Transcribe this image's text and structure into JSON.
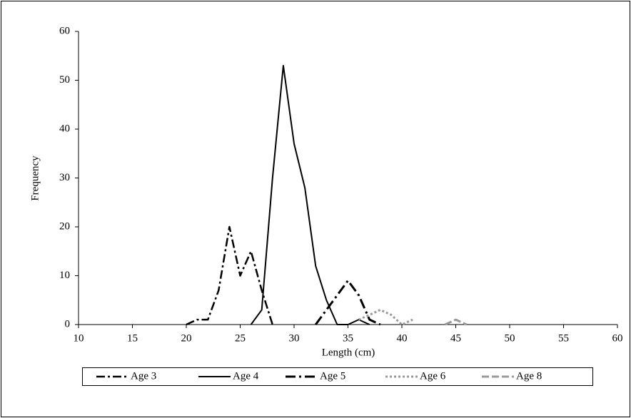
{
  "chart_data": {
    "type": "line",
    "x_label": "Length (cm)",
    "y_label": "Frequency",
    "xlim": [
      10,
      60
    ],
    "xticks": [
      10,
      15,
      20,
      25,
      30,
      35,
      40,
      45,
      50,
      55,
      60
    ],
    "ylim": [
      0,
      60
    ],
    "yticks": [
      0,
      10,
      20,
      30,
      40,
      50,
      60
    ],
    "series": [
      {
        "name": "Age 3",
        "color": "#000000",
        "x": [
          20,
          21,
          22,
          23,
          24,
          25,
          26,
          27,
          28
        ],
        "values": [
          0,
          1,
          1,
          7,
          20,
          10,
          15,
          7,
          0
        ]
      },
      {
        "name": "Age 4",
        "color": "#000000",
        "x": [
          26,
          27,
          28,
          29,
          30,
          31,
          32,
          33,
          34,
          35,
          36,
          37
        ],
        "values": [
          0,
          3,
          30,
          53,
          37,
          28,
          12,
          5,
          0,
          0,
          1,
          0
        ]
      },
      {
        "name": "Age 5",
        "color": "#000000",
        "x": [
          32,
          33,
          34,
          35,
          36,
          37,
          38
        ],
        "values": [
          0,
          3,
          6,
          9,
          6,
          1,
          0
        ]
      },
      {
        "name": "Age 6",
        "color": "#999999",
        "x": [
          36,
          37,
          38,
          39,
          40,
          41
        ],
        "values": [
          1,
          2,
          3,
          2,
          0,
          1
        ]
      },
      {
        "name": "Age 8",
        "color": "#999999",
        "x": [
          44,
          45,
          46
        ],
        "values": [
          0,
          1,
          0
        ]
      }
    ]
  }
}
